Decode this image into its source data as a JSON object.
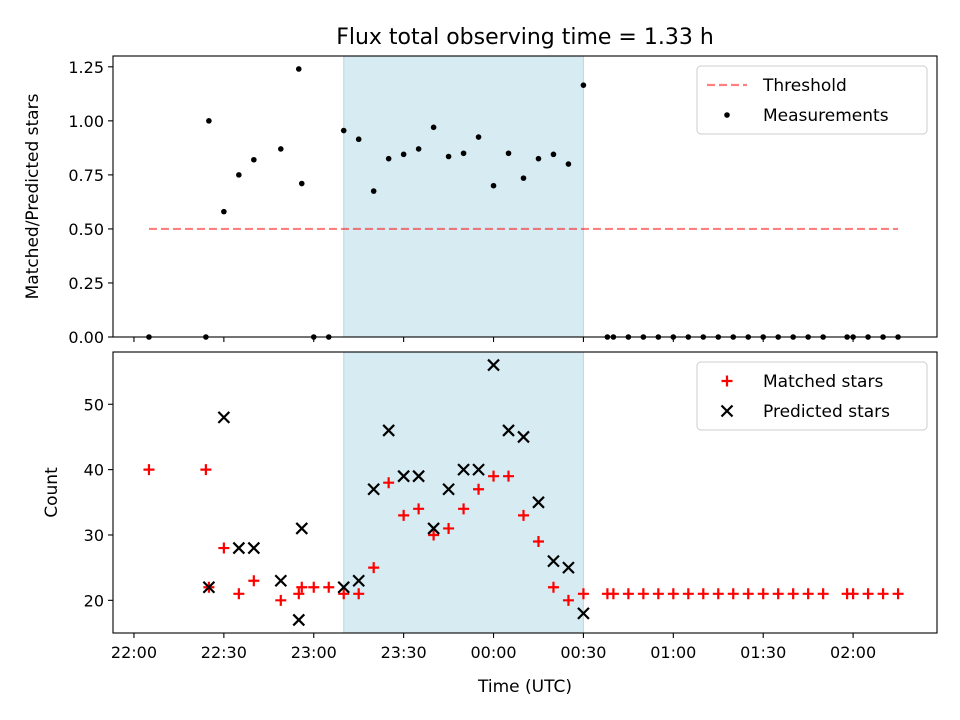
{
  "title": "Flux total observing time = 1.33 h",
  "x_tick_labels": [
    "22:00",
    "22:30",
    "23:00",
    "23:30",
    "00:00",
    "00:30",
    "01:00",
    "01:30",
    "02:00"
  ],
  "chart_data": [
    {
      "type": "scatter",
      "ylabel": "Matched/Predicted stars",
      "ylim": [
        0.0,
        1.3
      ],
      "yticks": [
        0.0,
        0.25,
        0.5,
        0.75,
        1.0,
        1.25
      ],
      "ytick_labels": [
        "0.00",
        "0.25",
        "0.50",
        "0.75",
        "1.00",
        "1.25"
      ],
      "x_range_utc": [
        "21:53",
        "02:28"
      ],
      "shaded_span": [
        "23:10",
        "00:30"
      ],
      "shaded_color": "#add8e6",
      "legend_position": "top-right",
      "threshold": {
        "name": "Threshold",
        "value": 0.5,
        "x_start": "22:05",
        "x_end": "02:15",
        "color": "#ff0000",
        "style": "dashed"
      },
      "series": [
        {
          "name": "Measurements",
          "color": "#000000",
          "marker": "dot",
          "points": [
            [
              "22:05",
              0.0
            ],
            [
              "22:24",
              0.0
            ],
            [
              "22:25",
              1.0
            ],
            [
              "22:30",
              0.58
            ],
            [
              "22:35",
              0.75
            ],
            [
              "22:40",
              0.82
            ],
            [
              "22:49",
              0.87
            ],
            [
              "22:55",
              1.24
            ],
            [
              "22:56",
              0.71
            ],
            [
              "23:00",
              0.0
            ],
            [
              "23:05",
              0.0
            ],
            [
              "23:10",
              0.955
            ],
            [
              "23:15",
              0.915
            ],
            [
              "23:20",
              0.675
            ],
            [
              "23:25",
              0.825
            ],
            [
              "23:30",
              0.845
            ],
            [
              "23:35",
              0.87
            ],
            [
              "23:40",
              0.97
            ],
            [
              "23:45",
              0.835
            ],
            [
              "23:50",
              0.85
            ],
            [
              "23:55",
              0.925
            ],
            [
              "00:00",
              0.7
            ],
            [
              "00:05",
              0.85
            ],
            [
              "00:10",
              0.735
            ],
            [
              "00:15",
              0.825
            ],
            [
              "00:20",
              0.845
            ],
            [
              "00:25",
              0.8
            ],
            [
              "00:30",
              1.165
            ],
            [
              "00:38",
              0.0
            ],
            [
              "00:40",
              0.0
            ],
            [
              "00:45",
              0.0
            ],
            [
              "00:50",
              0.0
            ],
            [
              "00:55",
              0.0
            ],
            [
              "01:00",
              0.0
            ],
            [
              "01:05",
              0.0
            ],
            [
              "01:10",
              0.0
            ],
            [
              "01:15",
              0.0
            ],
            [
              "01:20",
              0.0
            ],
            [
              "01:25",
              0.0
            ],
            [
              "01:30",
              0.0
            ],
            [
              "01:35",
              0.0
            ],
            [
              "01:40",
              0.0
            ],
            [
              "01:45",
              0.0
            ],
            [
              "01:50",
              0.0
            ],
            [
              "01:58",
              0.0
            ],
            [
              "02:00",
              0.0
            ],
            [
              "02:05",
              0.0
            ],
            [
              "02:10",
              0.0
            ],
            [
              "02:15",
              0.0
            ]
          ]
        }
      ]
    },
    {
      "type": "scatter",
      "xlabel": "Time (UTC)",
      "ylabel": "Count",
      "ylim": [
        15,
        58
      ],
      "yticks": [
        20,
        30,
        40,
        50
      ],
      "ytick_labels": [
        "20",
        "30",
        "40",
        "50"
      ],
      "x_range_utc": [
        "21:53",
        "02:28"
      ],
      "shaded_span": [
        "23:10",
        "00:30"
      ],
      "shaded_color": "#add8e6",
      "legend_position": "top-right",
      "series": [
        {
          "name": "Matched stars",
          "color": "#ff0000",
          "marker": "plus",
          "points": [
            [
              "22:05",
              40
            ],
            [
              "22:24",
              40
            ],
            [
              "22:25",
              22
            ],
            [
              "22:30",
              28
            ],
            [
              "22:35",
              21
            ],
            [
              "22:40",
              23
            ],
            [
              "22:49",
              20
            ],
            [
              "22:55",
              21
            ],
            [
              "22:56",
              22
            ],
            [
              "23:00",
              22
            ],
            [
              "23:05",
              22
            ],
            [
              "23:10",
              21
            ],
            [
              "23:15",
              21
            ],
            [
              "23:20",
              25
            ],
            [
              "23:25",
              38
            ],
            [
              "23:30",
              33
            ],
            [
              "23:35",
              34
            ],
            [
              "23:40",
              30
            ],
            [
              "23:45",
              31
            ],
            [
              "23:50",
              34
            ],
            [
              "23:55",
              37
            ],
            [
              "00:00",
              39
            ],
            [
              "00:05",
              39
            ],
            [
              "00:10",
              33
            ],
            [
              "00:15",
              29
            ],
            [
              "00:20",
              22
            ],
            [
              "00:25",
              20
            ],
            [
              "00:30",
              21
            ],
            [
              "00:38",
              21
            ],
            [
              "00:40",
              21
            ],
            [
              "00:45",
              21
            ],
            [
              "00:50",
              21
            ],
            [
              "00:55",
              21
            ],
            [
              "01:00",
              21
            ],
            [
              "01:05",
              21
            ],
            [
              "01:10",
              21
            ],
            [
              "01:15",
              21
            ],
            [
              "01:20",
              21
            ],
            [
              "01:25",
              21
            ],
            [
              "01:30",
              21
            ],
            [
              "01:35",
              21
            ],
            [
              "01:40",
              21
            ],
            [
              "01:45",
              21
            ],
            [
              "01:50",
              21
            ],
            [
              "01:58",
              21
            ],
            [
              "02:00",
              21
            ],
            [
              "02:05",
              21
            ],
            [
              "02:10",
              21
            ],
            [
              "02:15",
              21
            ]
          ]
        },
        {
          "name": "Predicted stars",
          "color": "#000000",
          "marker": "x",
          "points": [
            [
              "22:25",
              22
            ],
            [
              "22:30",
              48
            ],
            [
              "22:35",
              28
            ],
            [
              "22:40",
              28
            ],
            [
              "22:49",
              23
            ],
            [
              "22:55",
              17
            ],
            [
              "22:56",
              31
            ],
            [
              "23:10",
              22
            ],
            [
              "23:15",
              23
            ],
            [
              "23:20",
              37
            ],
            [
              "23:25",
              46
            ],
            [
              "23:30",
              39
            ],
            [
              "23:35",
              39
            ],
            [
              "23:40",
              31
            ],
            [
              "23:45",
              37
            ],
            [
              "23:50",
              40
            ],
            [
              "23:55",
              40
            ],
            [
              "00:00",
              56
            ],
            [
              "00:05",
              46
            ],
            [
              "00:10",
              45
            ],
            [
              "00:15",
              35
            ],
            [
              "00:20",
              26
            ],
            [
              "00:25",
              25
            ],
            [
              "00:30",
              18
            ]
          ]
        }
      ]
    }
  ]
}
